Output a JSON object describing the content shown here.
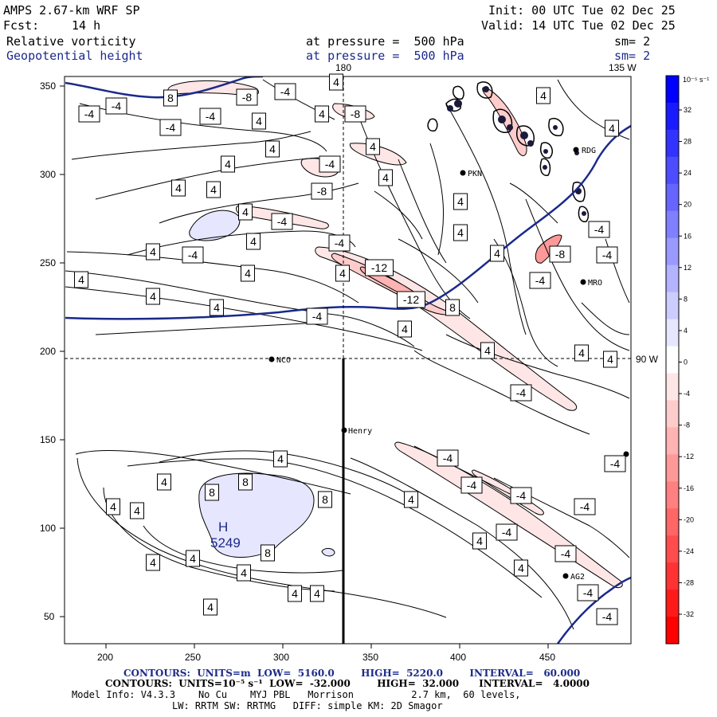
{
  "header": {
    "model": "AMPS 2.67-km WRF SP",
    "init": "Init: 00 UTC Tue 02 Dec 25",
    "fcst_label": "Fcst:",
    "fcst_value": "14 h",
    "valid": "Valid: 14 UTC Tue 02 Dec 25",
    "field1": "Relative vorticity",
    "field2": "Geopotential height",
    "pressure1": "at pressure =  500 hPa",
    "pressure2": "at pressure =  500 hPa",
    "sm1": "sm= 2",
    "sm2": "sm= 2"
  },
  "map": {
    "lon_top_1": "180",
    "lon_top_2": "135 W",
    "lat_right": "90 W",
    "x_ticks": [
      "200",
      "250",
      "300",
      "350",
      "400",
      "450"
    ],
    "y_ticks": [
      "350",
      "300",
      "250",
      "200",
      "150",
      "100",
      "50"
    ],
    "high_letter": "H",
    "high_value": "5249",
    "stations": [
      "NCO",
      "Henry",
      "PKN",
      "RDG",
      "MRO",
      "AG2"
    ],
    "contour_labels": [
      "4",
      "-4",
      "8",
      "-8",
      "-12"
    ],
    "colors": {
      "height_contour": "#1a2a8a",
      "negative_vorticity": "#ff0000",
      "positive_vorticity": "#0000ff"
    }
  },
  "colorbar": {
    "units": "10⁻⁵ s⁻¹",
    "labels": [
      "32",
      "28",
      "24",
      "20",
      "16",
      "12",
      "8",
      "4",
      "0",
      "-4",
      "-8",
      "-12",
      "-16",
      "-20",
      "-24",
      "-28",
      "-32"
    ],
    "colors": [
      "#0000ff",
      "#1a1aff",
      "#3333ff",
      "#4d4dff",
      "#6666ff",
      "#8080ff",
      "#9999ff",
      "#b3b3ff",
      "#ccccff",
      "#e6e6ff",
      "#ffffff",
      "#ffe6e6",
      "#ffcccc",
      "#ffb3b3",
      "#ff9999",
      "#ff8080",
      "#ff6666",
      "#ff4d4d",
      "#ff3333",
      "#ff1a1a",
      "#ff0000"
    ]
  },
  "footer": {
    "line1": "CONTOURS:  UNITS=m  LOW=  5160.0        HIGH=  5220.0        INTERVAL=   60.000",
    "line2": "CONTOURS:  UNITS=10⁻⁵ s⁻¹  LOW=  -32.000        HIGH=  32.000      INTERVAL=   4.0000",
    "line3": "Model Info: V4.3.3    No Cu    MYJ PBL   Morrison          2.7 km,  60 levels,",
    "line4": "LW: RRTM SW: RRTMG   DIFF: simple KM: 2D Smagor"
  }
}
